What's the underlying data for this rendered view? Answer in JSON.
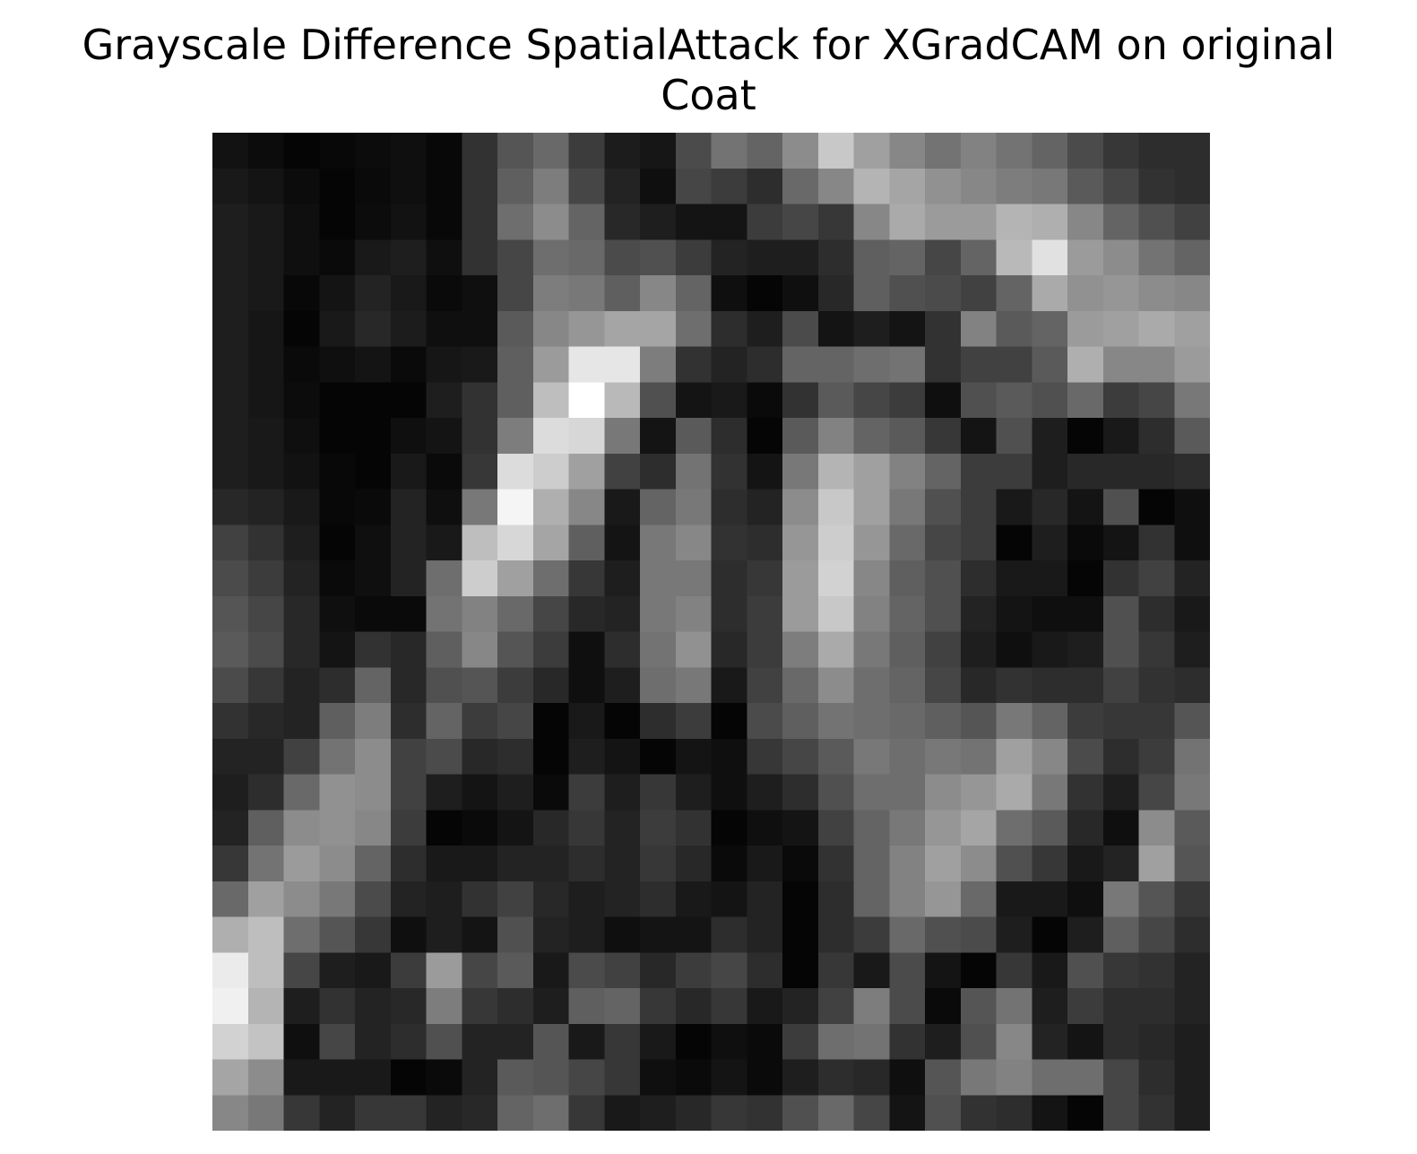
{
  "chart_data": {
    "type": "heatmap",
    "title_lines": [
      "Grayscale Difference SpatialAttack for XGradCAM on original",
      "Coat"
    ],
    "colormap": "gray",
    "axes_visible": false,
    "value_range": [
      0,
      255
    ],
    "rows": 28,
    "cols": 28,
    "values": [
      [
        18,
        12,
        5,
        8,
        12,
        15,
        8,
        50,
        85,
        105,
        60,
        28,
        22,
        75,
        115,
        100,
        140,
        200,
        160,
        135,
        115,
        130,
        115,
        100,
        75,
        55,
        45,
        45
      ],
      [
        25,
        20,
        12,
        5,
        10,
        15,
        8,
        50,
        95,
        125,
        70,
        35,
        15,
        70,
        60,
        45,
        105,
        135,
        180,
        165,
        145,
        135,
        125,
        120,
        90,
        70,
        50,
        45
      ],
      [
        30,
        25,
        15,
        5,
        12,
        18,
        8,
        50,
        110,
        140,
        100,
        40,
        30,
        20,
        20,
        60,
        70,
        55,
        135,
        170,
        155,
        155,
        180,
        175,
        135,
        100,
        80,
        65
      ],
      [
        30,
        25,
        15,
        10,
        25,
        30,
        15,
        50,
        70,
        110,
        105,
        75,
        80,
        60,
        35,
        30,
        30,
        45,
        95,
        100,
        70,
        100,
        185,
        225,
        155,
        140,
        115,
        100
      ],
      [
        30,
        25,
        8,
        20,
        35,
        25,
        10,
        15,
        70,
        125,
        120,
        95,
        135,
        100,
        15,
        5,
        15,
        40,
        95,
        80,
        75,
        65,
        100,
        170,
        145,
        150,
        140,
        135
      ],
      [
        30,
        22,
        5,
        25,
        40,
        28,
        15,
        15,
        90,
        135,
        150,
        165,
        165,
        110,
        45,
        30,
        75,
        20,
        30,
        20,
        50,
        130,
        90,
        100,
        155,
        160,
        170,
        160
      ],
      [
        30,
        22,
        10,
        15,
        20,
        10,
        22,
        25,
        95,
        155,
        230,
        230,
        125,
        50,
        35,
        45,
        100,
        100,
        110,
        115,
        50,
        65,
        65,
        90,
        175,
        135,
        135,
        155
      ],
      [
        30,
        22,
        12,
        5,
        5,
        5,
        30,
        50,
        95,
        190,
        255,
        185,
        80,
        20,
        25,
        10,
        50,
        90,
        70,
        60,
        15,
        80,
        90,
        80,
        105,
        60,
        70,
        120
      ],
      [
        30,
        25,
        15,
        5,
        5,
        15,
        20,
        50,
        125,
        220,
        215,
        120,
        20,
        90,
        45,
        5,
        90,
        130,
        100,
        90,
        55,
        20,
        80,
        30,
        5,
        25,
        45,
        90
      ],
      [
        30,
        25,
        18,
        8,
        5,
        25,
        10,
        55,
        220,
        205,
        160,
        65,
        45,
        115,
        50,
        20,
        120,
        180,
        160,
        130,
        100,
        60,
        60,
        30,
        40,
        40,
        40,
        45
      ],
      [
        40,
        35,
        25,
        8,
        10,
        35,
        15,
        120,
        245,
        175,
        135,
        25,
        100,
        120,
        45,
        35,
        140,
        200,
        160,
        120,
        80,
        60,
        25,
        40,
        20,
        80,
        5,
        15
      ],
      [
        65,
        50,
        30,
        5,
        15,
        35,
        25,
        190,
        215,
        165,
        95,
        20,
        120,
        135,
        50,
        45,
        150,
        205,
        150,
        105,
        70,
        60,
        5,
        30,
        10,
        20,
        50,
        15
      ],
      [
        75,
        60,
        35,
        10,
        15,
        35,
        110,
        205,
        160,
        110,
        55,
        30,
        120,
        120,
        45,
        55,
        155,
        210,
        135,
        95,
        80,
        45,
        25,
        25,
        5,
        50,
        65,
        35
      ],
      [
        85,
        70,
        40,
        15,
        10,
        10,
        115,
        130,
        105,
        70,
        40,
        35,
        120,
        130,
        45,
        60,
        155,
        200,
        130,
        100,
        80,
        35,
        20,
        15,
        15,
        80,
        45,
        25
      ],
      [
        90,
        75,
        40,
        20,
        50,
        40,
        95,
        135,
        85,
        60,
        15,
        45,
        115,
        145,
        40,
        60,
        125,
        170,
        120,
        95,
        65,
        30,
        15,
        25,
        30,
        80,
        55,
        30
      ],
      [
        75,
        55,
        35,
        45,
        100,
        40,
        80,
        85,
        60,
        40,
        15,
        30,
        110,
        120,
        25,
        65,
        105,
        140,
        110,
        100,
        70,
        40,
        50,
        45,
        45,
        65,
        50,
        45
      ],
      [
        50,
        40,
        35,
        95,
        125,
        45,
        100,
        60,
        70,
        5,
        25,
        5,
        45,
        60,
        5,
        75,
        95,
        115,
        110,
        105,
        95,
        85,
        120,
        100,
        60,
        55,
        55,
        85
      ],
      [
        35,
        35,
        65,
        115,
        140,
        65,
        75,
        40,
        45,
        5,
        30,
        20,
        5,
        20,
        15,
        55,
        70,
        90,
        120,
        110,
        120,
        115,
        160,
        135,
        75,
        45,
        60,
        115
      ],
      [
        30,
        45,
        105,
        145,
        140,
        65,
        30,
        20,
        30,
        10,
        60,
        30,
        55,
        30,
        15,
        30,
        45,
        80,
        110,
        110,
        140,
        150,
        170,
        120,
        50,
        30,
        70,
        120
      ],
      [
        35,
        95,
        140,
        145,
        135,
        60,
        5,
        10,
        20,
        40,
        55,
        35,
        60,
        50,
        5,
        15,
        20,
        65,
        100,
        120,
        150,
        165,
        110,
        90,
        40,
        15,
        140,
        90
      ],
      [
        55,
        115,
        155,
        140,
        100,
        45,
        25,
        25,
        35,
        35,
        45,
        35,
        55,
        40,
        10,
        25,
        10,
        50,
        100,
        130,
        160,
        140,
        80,
        55,
        25,
        35,
        160,
        85
      ],
      [
        105,
        160,
        140,
        120,
        75,
        35,
        30,
        50,
        65,
        40,
        30,
        35,
        45,
        25,
        20,
        35,
        5,
        45,
        100,
        130,
        150,
        105,
        25,
        25,
        15,
        120,
        85,
        55
      ],
      [
        175,
        190,
        110,
        85,
        55,
        15,
        30,
        20,
        80,
        35,
        30,
        15,
        20,
        20,
        45,
        35,
        5,
        45,
        60,
        105,
        80,
        75,
        30,
        5,
        30,
        95,
        70,
        45
      ],
      [
        235,
        190,
        70,
        30,
        25,
        60,
        155,
        70,
        90,
        25,
        75,
        65,
        40,
        60,
        70,
        45,
        5,
        55,
        25,
        75,
        20,
        5,
        55,
        25,
        80,
        55,
        50,
        35
      ],
      [
        240,
        180,
        30,
        50,
        35,
        40,
        125,
        55,
        45,
        30,
        95,
        100,
        55,
        40,
        55,
        25,
        35,
        65,
        125,
        75,
        10,
        85,
        115,
        30,
        60,
        45,
        45,
        35
      ],
      [
        210,
        195,
        15,
        70,
        35,
        45,
        80,
        35,
        35,
        85,
        25,
        55,
        25,
        5,
        15,
        10,
        60,
        110,
        115,
        50,
        30,
        80,
        135,
        35,
        20,
        45,
        40,
        30
      ],
      [
        165,
        140,
        25,
        25,
        25,
        5,
        10,
        35,
        90,
        85,
        70,
        55,
        15,
        10,
        20,
        10,
        30,
        45,
        40,
        15,
        85,
        120,
        130,
        110,
        110,
        70,
        45,
        30
      ],
      [
        135,
        120,
        55,
        35,
        55,
        55,
        35,
        40,
        100,
        110,
        55,
        25,
        30,
        40,
        55,
        50,
        80,
        105,
        70,
        20,
        80,
        50,
        45,
        20,
        5,
        70,
        50,
        30
      ]
    ]
  }
}
